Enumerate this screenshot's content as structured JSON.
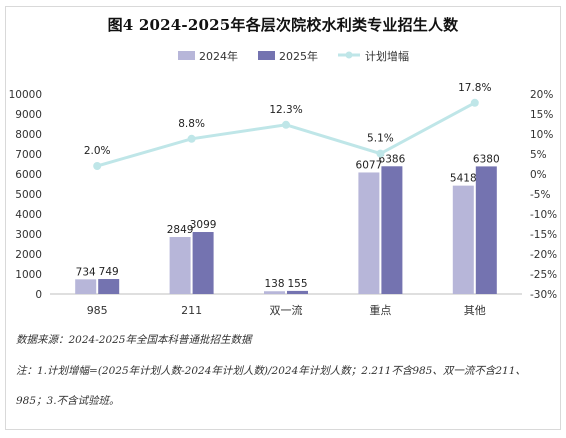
{
  "chart_data": {
    "type": "bar",
    "title": "图4  2024-2025年各层次院校水利类专业招生人数",
    "categories": [
      "985",
      "211",
      "双一流",
      "重点",
      "其他"
    ],
    "series": [
      {
        "name": "2024年",
        "values": [
          734,
          2849,
          138,
          6077,
          5418
        ],
        "color": "#b7b6d9",
        "axis": "left",
        "kind": "bar"
      },
      {
        "name": "2025年",
        "values": [
          749,
          3099,
          155,
          6386,
          6380
        ],
        "color": "#7473b0",
        "axis": "left",
        "kind": "bar"
      },
      {
        "name": "计划增幅",
        "values": [
          2.0,
          8.8,
          12.3,
          5.1,
          17.8
        ],
        "labels": [
          "2.0%",
          "8.8%",
          "12.3%",
          "5.1%",
          "17.8%"
        ],
        "color": "#bfe6e8",
        "axis": "right",
        "kind": "line"
      }
    ],
    "ylim_left": [
      0,
      10000
    ],
    "yticks_left": [
      "0",
      "1000",
      "2000",
      "3000",
      "4000",
      "5000",
      "6000",
      "7000",
      "8000",
      "9000",
      "10000"
    ],
    "ylim_right": [
      -30,
      20
    ],
    "yticks_right": [
      "-30%",
      "-25%",
      "-20%",
      "-15%",
      "-10%",
      "-5%",
      "0%",
      "5%",
      "10%",
      "15%",
      "20%"
    ],
    "legend_position": "top-right",
    "grid": false
  },
  "notes": {
    "source": "数据来源：2024-2025年全国本科普通批招生数据",
    "note_line1": "注：1.计划增幅=(2025年计划人数-2024年计划人数)/2024年计划人数；2.211不含985、双一流不含211、",
    "note_line2": "985；3.不含试验班。"
  }
}
